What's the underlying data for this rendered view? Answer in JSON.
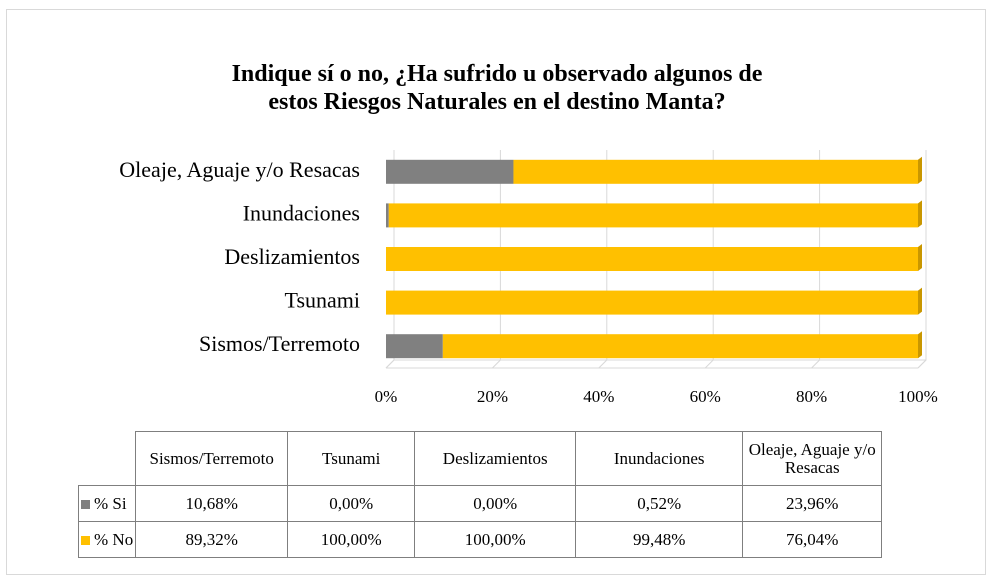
{
  "chart_data": {
    "type": "bar",
    "orientation": "horizontal",
    "stacked": true,
    "title": "Indique sí o no, ¿Ha sufrido u observado algunos de estos Riesgos Naturales en el destino Manta?",
    "categories": [
      "Sismos/Terremoto",
      "Tsunami",
      "Deslizamientos",
      "Inundaciones",
      "Oleaje, Aguaje y/o Resacas"
    ],
    "series": [
      {
        "name": "% Si",
        "color": "#808080",
        "values": [
          10.68,
          0,
          0,
          0.52,
          23.96
        ],
        "value_labels": [
          "10,68%",
          "0,00%",
          "0,00%",
          "0,52%",
          "23,96%"
        ]
      },
      {
        "name": "% No",
        "color": "#ffc000",
        "values": [
          89.32,
          100,
          100,
          99.48,
          76.04
        ],
        "value_labels": [
          "89,32%",
          "100,00%",
          "100,00%",
          "99,48%",
          "76,04%"
        ]
      }
    ],
    "xlim": [
      0,
      100
    ],
    "xticks": [
      {
        "value": 0,
        "label": "0%"
      },
      {
        "value": 20,
        "label": "20%"
      },
      {
        "value": 40,
        "label": "40%"
      },
      {
        "value": 60,
        "label": "60%"
      },
      {
        "value": 80,
        "label": "80%"
      },
      {
        "value": 100,
        "label": "100%"
      }
    ],
    "grid": true
  }
}
